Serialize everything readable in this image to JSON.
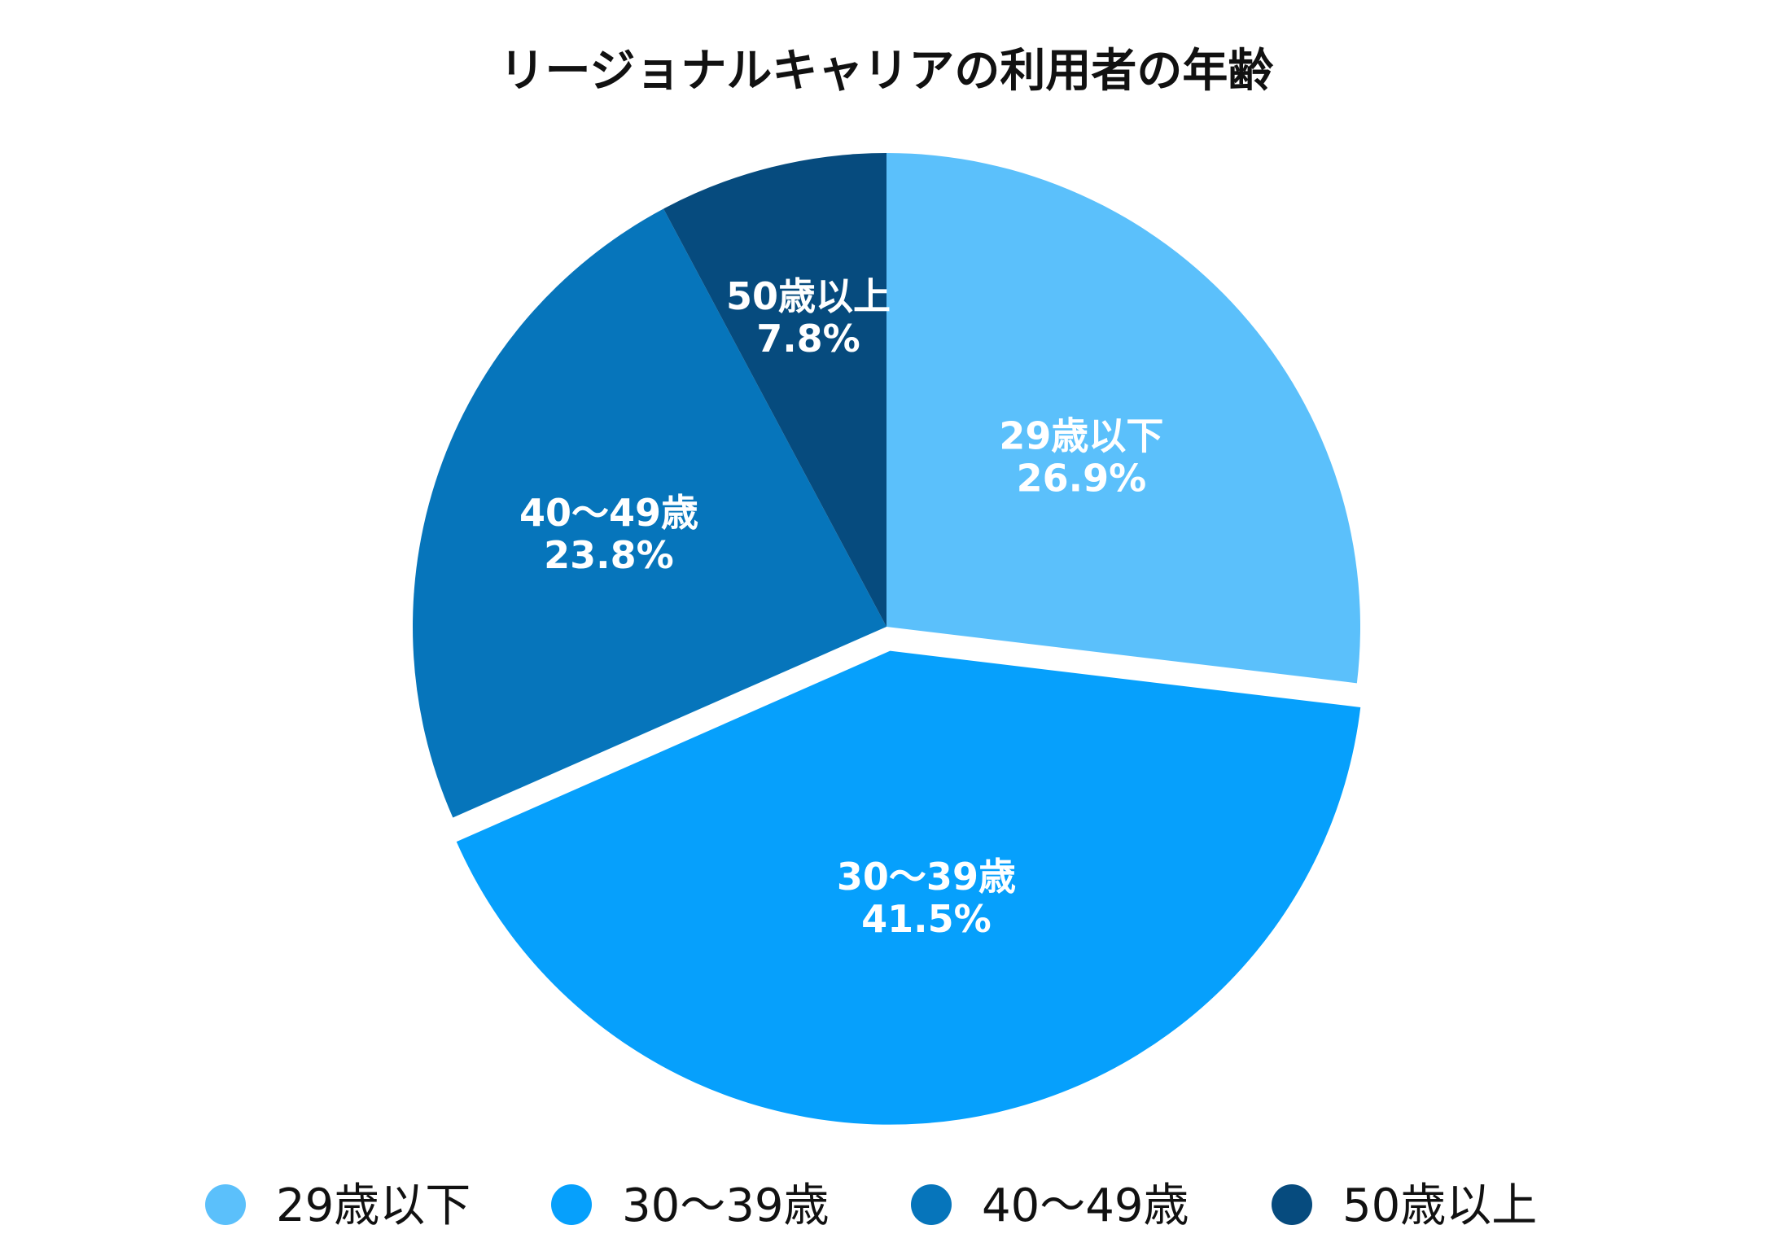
{
  "chart_data": {
    "type": "pie",
    "title": "リージョナルキャリアの利用者の年齢",
    "slices": [
      {
        "category": "29歳以下",
        "value": 26.9,
        "value_label": "26.9%",
        "color": "#5bc0fb",
        "exploded": false
      },
      {
        "category": "30～39歳",
        "value": 41.5,
        "value_label": "41.5%",
        "color": "#06a0fc",
        "exploded": true
      },
      {
        "category": "40～49歳",
        "value": 23.8,
        "value_label": "23.8%",
        "color": "#0675bb",
        "exploded": false
      },
      {
        "category": "50歳以上",
        "value": 7.8,
        "value_label": "7.8%",
        "color": "#064b7e",
        "exploded": false
      }
    ],
    "start_angle": "12 o'clock",
    "direction": "clockwise",
    "legend_position": "bottom"
  }
}
